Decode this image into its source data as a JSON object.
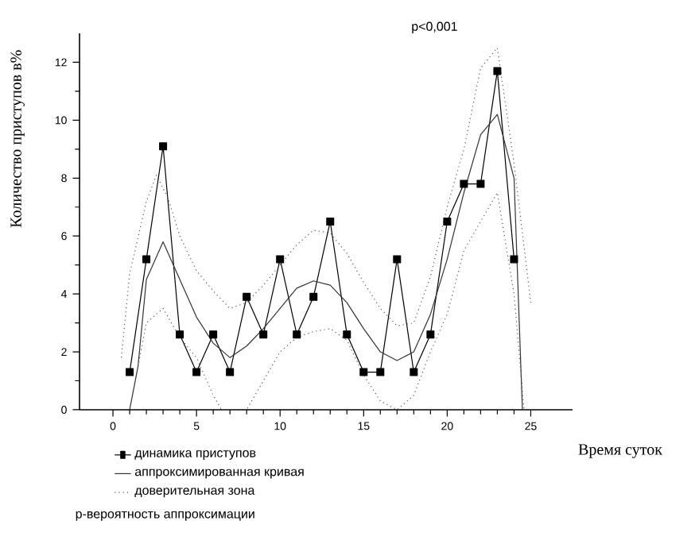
{
  "chart_data": {
    "type": "line",
    "xlabel": "Время суток",
    "ylabel": "Количество приступов в%",
    "xlim": [
      -2,
      27.5
    ],
    "ylim": [
      0,
      13
    ],
    "xticks": [
      0,
      5,
      10,
      15,
      20,
      25
    ],
    "yticks": [
      0,
      2,
      4,
      6,
      8,
      10,
      12
    ],
    "legend": "bottom",
    "grid": false,
    "annotations": [
      "p<0,001",
      "р-вероятность аппроксимации"
    ],
    "series": [
      {
        "name": "динамика приступов",
        "color": "#000000",
        "marker": "square",
        "line_style": "solid",
        "x": [
          1,
          2,
          3,
          4,
          5,
          6,
          7,
          8,
          9,
          10,
          11,
          12,
          13,
          14,
          15,
          16,
          17,
          18,
          19,
          20,
          21,
          22,
          23,
          24
        ],
        "values": [
          1.3,
          5.2,
          9.1,
          2.6,
          1.3,
          2.6,
          1.3,
          3.9,
          2.6,
          5.2,
          2.6,
          3.9,
          6.5,
          2.6,
          1.3,
          1.3,
          5.2,
          1.3,
          2.6,
          6.5,
          7.8,
          7.8,
          11.7,
          5.2
        ]
      },
      {
        "name": "аппроксимированная кривая",
        "color": "#333333",
        "marker": "none",
        "line_style": "solid",
        "x": [
          1,
          1.5,
          2,
          3,
          4,
          5,
          6,
          7,
          8,
          9,
          10,
          11,
          12,
          13,
          14,
          15,
          16,
          17,
          18,
          19,
          20,
          21,
          22,
          23,
          24,
          24.5
        ],
        "values": [
          0,
          1.5,
          4.5,
          5.8,
          4.5,
          3.2,
          2.3,
          1.8,
          2.2,
          2.8,
          3.5,
          4.2,
          4.45,
          4.3,
          3.7,
          2.8,
          2.0,
          1.7,
          2.0,
          3.3,
          5.2,
          7.5,
          9.5,
          10.2,
          8.0,
          0
        ]
      },
      {
        "name": "доверительная зона",
        "color": "#555555",
        "marker": "none",
        "line_style": "dotted",
        "x": [
          0.5,
          1,
          2,
          2.6,
          3.3,
          4,
          5,
          6,
          7,
          8,
          9,
          10,
          11,
          12,
          13,
          14,
          15,
          16,
          17,
          18,
          19,
          20,
          21,
          22,
          23,
          24,
          25
        ],
        "values": [
          1.8,
          4.7,
          7.2,
          8.1,
          7.3,
          6.0,
          4.8,
          4.1,
          3.5,
          3.7,
          4.3,
          5.0,
          5.7,
          6.2,
          6.1,
          5.4,
          4.4,
          3.5,
          2.9,
          3.0,
          4.6,
          7.0,
          9.0,
          11.8,
          12.5,
          8.5,
          3.7
        ]
      },
      {
        "color": "#555555",
        "marker": "none",
        "line_style": "dotted",
        "x": [
          1.5,
          2,
          3,
          4,
          5,
          6,
          6.5,
          8,
          9,
          10,
          11,
          12,
          13,
          14,
          15,
          16,
          17,
          18,
          19,
          20,
          21,
          22,
          23,
          24,
          24.6
        ],
        "values": [
          1.5,
          3.0,
          3.5,
          2.5,
          1.8,
          0.5,
          0,
          0,
          1.0,
          2.0,
          2.5,
          2.7,
          2.8,
          2.4,
          1.2,
          0.3,
          0,
          0.5,
          2.0,
          3.3,
          5.5,
          6.5,
          7.5,
          4.0,
          0
        ]
      }
    ]
  }
}
